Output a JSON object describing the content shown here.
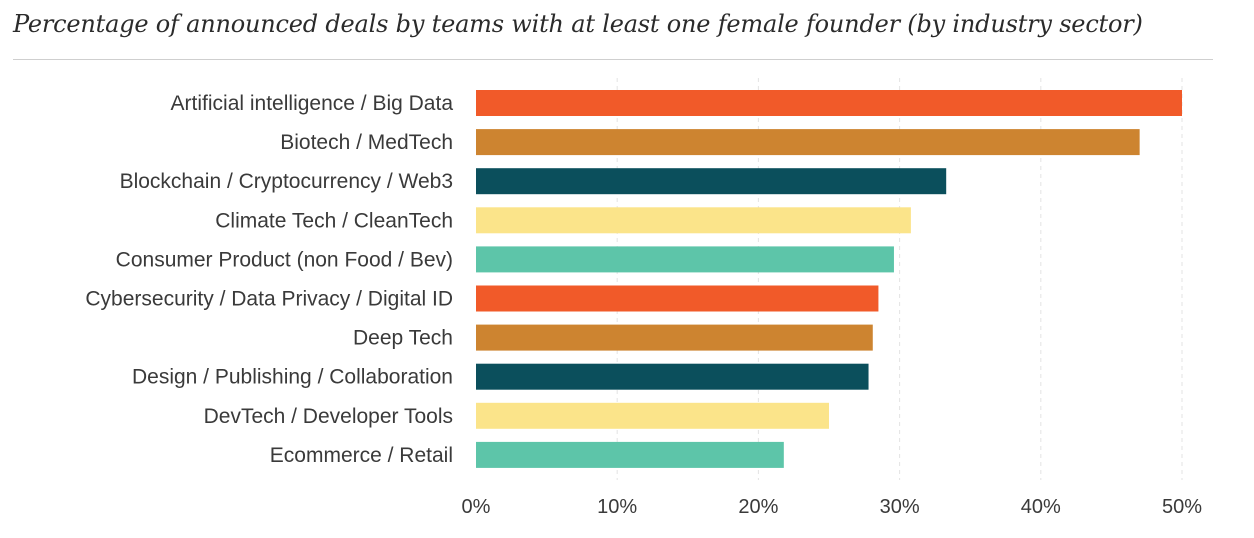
{
  "chart_data": {
    "type": "bar",
    "orientation": "horizontal",
    "title": "Percentage of announced deals by teams with at least one female founder (by industry sector)",
    "categories": [
      "Artificial intelligence / Big Data",
      "Biotech / MedTech",
      "Blockchain / Cryptocurrency / Web3",
      "Climate Tech / CleanTech",
      "Consumer Product (non Food / Bev)",
      "Cybersecurity / Data Privacy / Digital ID",
      "Deep Tech",
      "Design / Publishing / Collaboration",
      "DevTech / Developer Tools",
      "Ecommerce / Retail"
    ],
    "values": [
      50.0,
      47.0,
      33.3,
      30.8,
      29.6,
      28.5,
      28.1,
      27.8,
      25.0,
      21.8
    ],
    "unit": "%",
    "xlim": [
      0,
      50
    ],
    "xticks": [
      0,
      10,
      20,
      30,
      40,
      50
    ],
    "xtick_labels": [
      "0%",
      "10%",
      "20%",
      "30%",
      "40%",
      "50%"
    ],
    "grid": "vertical dashed",
    "colors": [
      "#f15a29",
      "#cd8430",
      "#0b4f5c",
      "#fbe48a",
      "#5dc5a9",
      "#f15a29",
      "#cd8430",
      "#0b4f5c",
      "#fbe48a",
      "#5dc5a9"
    ]
  }
}
